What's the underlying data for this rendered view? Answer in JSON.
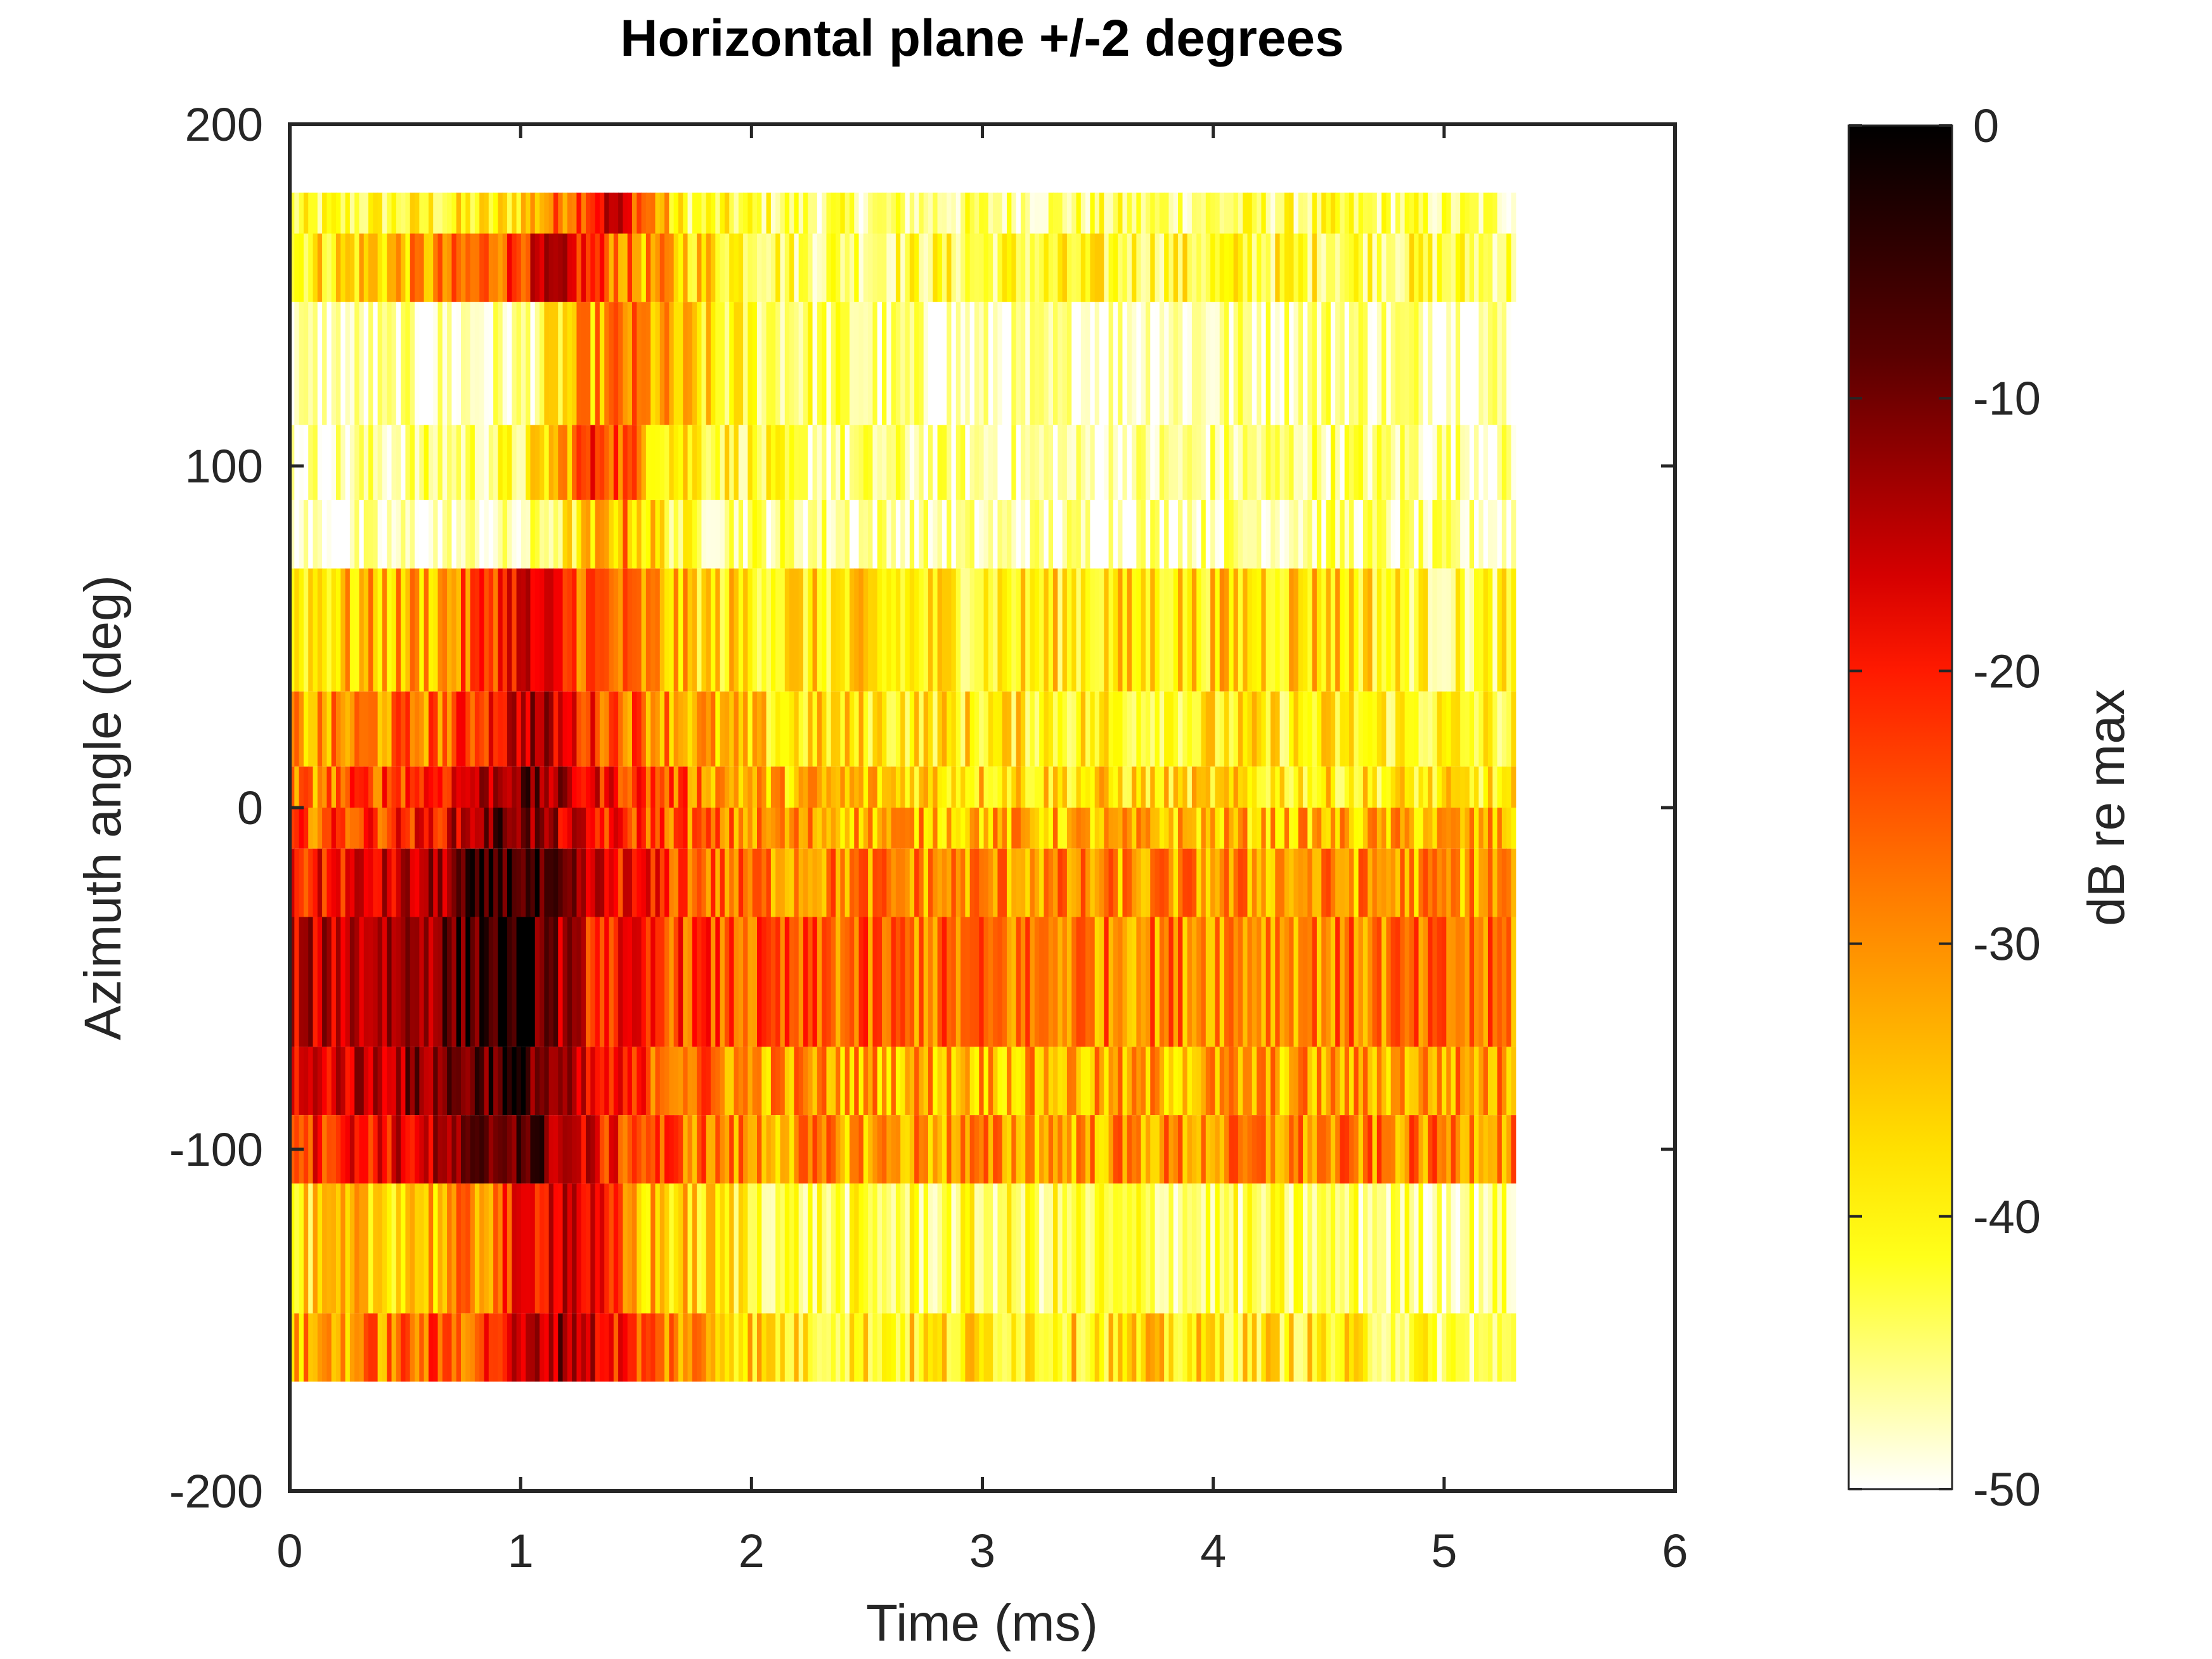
{
  "chart_data": {
    "type": "heatmap",
    "title": "Horizontal plane +/-2 degrees",
    "xlabel": "Time (ms)",
    "ylabel": "Azimuth angle (deg)",
    "xlim": [
      0,
      6
    ],
    "ylim": [
      -200,
      200
    ],
    "xticks": [
      "0",
      "1",
      "2",
      "3",
      "4",
      "5",
      "6"
    ],
    "yticks": [
      "200",
      "100",
      "0",
      "-100",
      "-200"
    ],
    "colorbar": {
      "label": "dB re max",
      "range": [
        -50,
        0
      ],
      "ticks": [
        "0",
        "-10",
        "-20",
        "-30",
        "-40",
        "-50"
      ],
      "colormap": "hot (reversed): black - dark red - red - orange - yellow - white"
    },
    "data_extent": {
      "time_ms": [
        0,
        5.31
      ]
    },
    "rows": [
      {
        "az_low": 160,
        "az_high": 180,
        "profile": [
          [
            0,
            -42
          ],
          [
            0.9,
            -38
          ],
          [
            1.15,
            -28
          ],
          [
            1.4,
            -14
          ],
          [
            1.7,
            -40
          ],
          [
            2.5,
            -44
          ],
          [
            4.5,
            -42
          ],
          [
            5.3,
            -44
          ]
        ]
      },
      {
        "az_low": 148,
        "az_high": 168,
        "profile": [
          [
            0,
            -38
          ],
          [
            0.8,
            -28
          ],
          [
            1.15,
            -16
          ],
          [
            1.5,
            -30
          ],
          [
            2.2,
            -42
          ],
          [
            3.5,
            -40
          ],
          [
            4.5,
            -40
          ],
          [
            5.3,
            -42
          ]
        ]
      },
      {
        "az_low": 112,
        "az_high": 148,
        "profile": [
          [
            0,
            -48
          ],
          [
            1.0,
            -46
          ],
          [
            1.25,
            -33
          ],
          [
            1.45,
            -28
          ],
          [
            1.9,
            -40
          ],
          [
            3.0,
            -48
          ],
          [
            4.5,
            -44
          ],
          [
            5.3,
            -46
          ]
        ]
      },
      {
        "az_low": 90,
        "az_high": 112,
        "profile": [
          [
            0,
            -47
          ],
          [
            1.0,
            -42
          ],
          [
            1.35,
            -20
          ],
          [
            1.6,
            -34
          ],
          [
            2.2,
            -44
          ],
          [
            3.5,
            -47
          ],
          [
            4.5,
            -43
          ],
          [
            5.3,
            -46
          ]
        ]
      },
      {
        "az_low": 70,
        "az_high": 90,
        "profile": [
          [
            0,
            -49
          ],
          [
            1.0,
            -47
          ],
          [
            1.45,
            -30
          ],
          [
            1.7,
            -42
          ],
          [
            3.0,
            -47
          ],
          [
            4.5,
            -44
          ],
          [
            5.2,
            -47
          ]
        ]
      },
      {
        "az_low": 34,
        "az_high": 70,
        "profile": [
          [
            0,
            -36
          ],
          [
            0.7,
            -30
          ],
          [
            1.0,
            -16
          ],
          [
            1.25,
            -24
          ],
          [
            1.8,
            -36
          ],
          [
            3.0,
            -38
          ],
          [
            4.5,
            -34
          ],
          [
            5.0,
            -42
          ],
          [
            5.3,
            -40
          ]
        ]
      },
      {
        "az_low": 12,
        "az_high": 34,
        "profile": [
          [
            0,
            -32
          ],
          [
            0.7,
            -26
          ],
          [
            1.05,
            -12
          ],
          [
            1.3,
            -22
          ],
          [
            2.0,
            -36
          ],
          [
            3.5,
            -38
          ],
          [
            4.5,
            -38
          ],
          [
            5.3,
            -40
          ]
        ]
      },
      {
        "az_low": 0,
        "az_high": 12,
        "profile": [
          [
            0,
            -30
          ],
          [
            0.7,
            -18
          ],
          [
            1.0,
            -8
          ],
          [
            1.3,
            -18
          ],
          [
            2.0,
            -32
          ],
          [
            3.5,
            -36
          ],
          [
            5.3,
            -38
          ]
        ]
      },
      {
        "az_low": -12,
        "az_high": 0,
        "profile": [
          [
            0,
            -26
          ],
          [
            0.6,
            -20
          ],
          [
            0.95,
            -6
          ],
          [
            1.3,
            -20
          ],
          [
            2.0,
            -30
          ],
          [
            3.5,
            -33
          ],
          [
            5.3,
            -32
          ]
        ]
      },
      {
        "az_low": -32,
        "az_high": -12,
        "profile": [
          [
            0,
            -22
          ],
          [
            0.6,
            -14
          ],
          [
            0.95,
            -2
          ],
          [
            1.3,
            -16
          ],
          [
            1.9,
            -28
          ],
          [
            3.5,
            -30
          ],
          [
            5.3,
            -30
          ]
        ]
      },
      {
        "az_low": -70,
        "az_high": -32,
        "profile": [
          [
            0,
            -16
          ],
          [
            0.6,
            -10
          ],
          [
            1.0,
            0
          ],
          [
            1.3,
            -20
          ],
          [
            2.0,
            -26
          ],
          [
            3.5,
            -28
          ],
          [
            5.3,
            -28
          ]
        ]
      },
      {
        "az_low": -90,
        "az_high": -70,
        "profile": [
          [
            0,
            -18
          ],
          [
            0.6,
            -10
          ],
          [
            1.0,
            -3
          ],
          [
            1.3,
            -20
          ],
          [
            2.0,
            -30
          ],
          [
            3.5,
            -32
          ],
          [
            5.3,
            -30
          ]
        ]
      },
      {
        "az_low": -110,
        "az_high": -90,
        "profile": [
          [
            0,
            -22
          ],
          [
            0.6,
            -16
          ],
          [
            1.0,
            -4
          ],
          [
            1.4,
            -22
          ],
          [
            2.0,
            -30
          ],
          [
            3.5,
            -30
          ],
          [
            5.3,
            -28
          ]
        ]
      },
      {
        "az_low": -148,
        "az_high": -110,
        "profile": [
          [
            0,
            -38
          ],
          [
            0.8,
            -30
          ],
          [
            1.2,
            -12
          ],
          [
            1.5,
            -32
          ],
          [
            2.2,
            -42
          ],
          [
            3.5,
            -42
          ],
          [
            5.3,
            -44
          ]
        ]
      },
      {
        "az_low": -168,
        "az_high": -148,
        "profile": [
          [
            0,
            -32
          ],
          [
            0.8,
            -24
          ],
          [
            1.2,
            -10
          ],
          [
            1.55,
            -26
          ],
          [
            2.2,
            -38
          ],
          [
            3.5,
            -36
          ],
          [
            4.5,
            -38
          ],
          [
            5.3,
            -44
          ]
        ]
      }
    ]
  }
}
